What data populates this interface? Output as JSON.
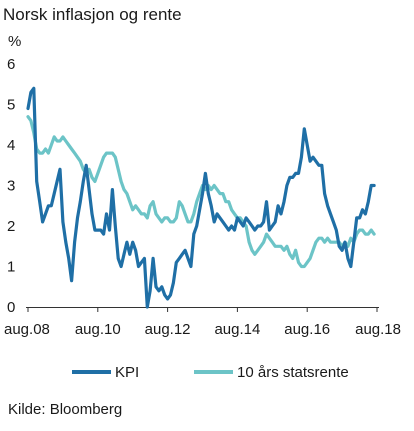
{
  "chart_data": {
    "type": "line",
    "title": "Norsk inflasjon og rente",
    "ylabel": "%",
    "xlabel": "",
    "source": "Kilde: Bloomberg",
    "ylim": [
      0,
      6
    ],
    "yticks": [
      0,
      1,
      2,
      3,
      4,
      5,
      6
    ],
    "xlim": [
      2008.583,
      2018.583
    ],
    "xticks": [
      {
        "x": 2008.583,
        "label": "aug.08"
      },
      {
        "x": 2010.583,
        "label": "aug.10"
      },
      {
        "x": 2012.583,
        "label": "aug.12"
      },
      {
        "x": 2014.583,
        "label": "aug.14"
      },
      {
        "x": 2016.583,
        "label": "aug.16"
      },
      {
        "x": 2018.583,
        "label": "aug.18"
      }
    ],
    "grid": false,
    "legend_position": "bottom",
    "series": [
      {
        "name": "KPI",
        "color": "#1f6fa6",
        "points": [
          [
            2008.583,
            4.9
          ],
          [
            2008.667,
            5.3
          ],
          [
            2008.75,
            5.4
          ],
          [
            2008.833,
            3.1
          ],
          [
            2008.917,
            2.6
          ],
          [
            2009.0,
            2.1
          ],
          [
            2009.083,
            2.3
          ],
          [
            2009.167,
            2.5
          ],
          [
            2009.25,
            2.5
          ],
          [
            2009.333,
            2.8
          ],
          [
            2009.417,
            3.1
          ],
          [
            2009.5,
            3.4
          ],
          [
            2009.583,
            2.1
          ],
          [
            2009.667,
            1.6
          ],
          [
            2009.75,
            1.2
          ],
          [
            2009.833,
            0.65
          ],
          [
            2009.917,
            1.6
          ],
          [
            2010.0,
            2.2
          ],
          [
            2010.083,
            2.6
          ],
          [
            2010.167,
            3.1
          ],
          [
            2010.25,
            3.5
          ],
          [
            2010.333,
            2.9
          ],
          [
            2010.417,
            2.3
          ],
          [
            2010.5,
            1.9
          ],
          [
            2010.583,
            1.9
          ],
          [
            2010.667,
            1.9
          ],
          [
            2010.75,
            1.8
          ],
          [
            2010.833,
            2.3
          ],
          [
            2010.917,
            1.9
          ],
          [
            2011.0,
            2.9
          ],
          [
            2011.083,
            2.0
          ],
          [
            2011.167,
            1.2
          ],
          [
            2011.25,
            1.0
          ],
          [
            2011.333,
            1.3
          ],
          [
            2011.417,
            1.6
          ],
          [
            2011.5,
            1.3
          ],
          [
            2011.583,
            1.6
          ],
          [
            2011.667,
            1.4
          ],
          [
            2011.75,
            1.0
          ],
          [
            2011.833,
            1.1
          ],
          [
            2011.917,
            1.2
          ],
          [
            2012.0,
            0.0
          ],
          [
            2012.083,
            0.4
          ],
          [
            2012.167,
            1.2
          ],
          [
            2012.25,
            0.5
          ],
          [
            2012.333,
            0.4
          ],
          [
            2012.417,
            0.5
          ],
          [
            2012.5,
            0.3
          ],
          [
            2012.583,
            0.2
          ],
          [
            2012.667,
            0.3
          ],
          [
            2012.75,
            0.6
          ],
          [
            2012.833,
            1.1
          ],
          [
            2012.917,
            1.2
          ],
          [
            2013.0,
            1.3
          ],
          [
            2013.083,
            1.4
          ],
          [
            2013.167,
            1.2
          ],
          [
            2013.25,
            1.0
          ],
          [
            2013.333,
            1.8
          ],
          [
            2013.417,
            2.0
          ],
          [
            2013.5,
            2.4
          ],
          [
            2013.583,
            2.8
          ],
          [
            2013.667,
            3.3
          ],
          [
            2013.75,
            2.8
          ],
          [
            2013.833,
            2.5
          ],
          [
            2013.917,
            2.1
          ],
          [
            2014.0,
            2.3
          ],
          [
            2014.083,
            2.2
          ],
          [
            2014.167,
            2.1
          ],
          [
            2014.25,
            2.0
          ],
          [
            2014.333,
            1.9
          ],
          [
            2014.417,
            2.0
          ],
          [
            2014.5,
            1.9
          ],
          [
            2014.583,
            2.2
          ],
          [
            2014.667,
            2.1
          ],
          [
            2014.75,
            2.0
          ],
          [
            2014.833,
            2.2
          ],
          [
            2014.917,
            2.1
          ],
          [
            2015.0,
            2.0
          ],
          [
            2015.083,
            1.9
          ],
          [
            2015.167,
            2.0
          ],
          [
            2015.25,
            2.0
          ],
          [
            2015.333,
            2.1
          ],
          [
            2015.417,
            2.6
          ],
          [
            2015.5,
            1.9
          ],
          [
            2015.583,
            2.0
          ],
          [
            2015.667,
            2.1
          ],
          [
            2015.75,
            2.5
          ],
          [
            2015.833,
            2.3
          ],
          [
            2015.917,
            2.6
          ],
          [
            2016.0,
            3.0
          ],
          [
            2016.083,
            3.2
          ],
          [
            2016.167,
            3.2
          ],
          [
            2016.25,
            3.3
          ],
          [
            2016.333,
            3.3
          ],
          [
            2016.417,
            3.7
          ],
          [
            2016.5,
            4.4
          ],
          [
            2016.583,
            4.0
          ],
          [
            2016.667,
            3.6
          ],
          [
            2016.75,
            3.7
          ],
          [
            2016.833,
            3.6
          ],
          [
            2016.917,
            3.5
          ],
          [
            2017.0,
            3.5
          ],
          [
            2017.083,
            2.8
          ],
          [
            2017.167,
            2.5
          ],
          [
            2017.25,
            2.3
          ],
          [
            2017.333,
            2.1
          ],
          [
            2017.417,
            1.9
          ],
          [
            2017.5,
            1.5
          ],
          [
            2017.583,
            1.4
          ],
          [
            2017.667,
            1.6
          ],
          [
            2017.75,
            1.2
          ],
          [
            2017.833,
            1.0
          ],
          [
            2017.917,
            1.6
          ],
          [
            2018.0,
            2.2
          ],
          [
            2018.083,
            2.2
          ],
          [
            2018.167,
            2.4
          ],
          [
            2018.25,
            2.3
          ],
          [
            2018.333,
            2.6
          ],
          [
            2018.417,
            3.0
          ],
          [
            2018.5,
            3.0
          ]
        ]
      },
      {
        "name": "10 års statsrente",
        "color": "#6cc4c7",
        "points": [
          [
            2008.583,
            4.7
          ],
          [
            2008.667,
            4.6
          ],
          [
            2008.75,
            4.3
          ],
          [
            2008.833,
            3.9
          ],
          [
            2008.917,
            3.8
          ],
          [
            2009.0,
            3.8
          ],
          [
            2009.083,
            3.9
          ],
          [
            2009.167,
            3.8
          ],
          [
            2009.25,
            4.0
          ],
          [
            2009.333,
            4.2
          ],
          [
            2009.417,
            4.1
          ],
          [
            2009.5,
            4.1
          ],
          [
            2009.583,
            4.2
          ],
          [
            2009.667,
            4.1
          ],
          [
            2009.75,
            4.0
          ],
          [
            2009.833,
            3.9
          ],
          [
            2009.917,
            3.8
          ],
          [
            2010.0,
            3.7
          ],
          [
            2010.083,
            3.6
          ],
          [
            2010.167,
            3.4
          ],
          [
            2010.25,
            3.3
          ],
          [
            2010.333,
            3.4
          ],
          [
            2010.417,
            3.2
          ],
          [
            2010.5,
            3.1
          ],
          [
            2010.583,
            3.3
          ],
          [
            2010.667,
            3.5
          ],
          [
            2010.75,
            3.7
          ],
          [
            2010.833,
            3.8
          ],
          [
            2010.917,
            3.8
          ],
          [
            2011.0,
            3.8
          ],
          [
            2011.083,
            3.7
          ],
          [
            2011.167,
            3.4
          ],
          [
            2011.25,
            3.1
          ],
          [
            2011.333,
            2.9
          ],
          [
            2011.417,
            2.8
          ],
          [
            2011.5,
            2.6
          ],
          [
            2011.583,
            2.4
          ],
          [
            2011.667,
            2.5
          ],
          [
            2011.75,
            2.4
          ],
          [
            2011.833,
            2.3
          ],
          [
            2011.917,
            2.3
          ],
          [
            2012.0,
            2.2
          ],
          [
            2012.083,
            2.5
          ],
          [
            2012.167,
            2.6
          ],
          [
            2012.25,
            2.3
          ],
          [
            2012.333,
            2.2
          ],
          [
            2012.417,
            2.1
          ],
          [
            2012.5,
            2.2
          ],
          [
            2012.583,
            2.2
          ],
          [
            2012.667,
            2.1
          ],
          [
            2012.75,
            2.1
          ],
          [
            2012.833,
            2.2
          ],
          [
            2012.917,
            2.6
          ],
          [
            2013.0,
            2.5
          ],
          [
            2013.083,
            2.3
          ],
          [
            2013.167,
            2.1
          ],
          [
            2013.25,
            2.1
          ],
          [
            2013.333,
            2.3
          ],
          [
            2013.417,
            2.6
          ],
          [
            2013.5,
            2.8
          ],
          [
            2013.583,
            3.0
          ],
          [
            2013.667,
            2.9
          ],
          [
            2013.75,
            3.0
          ],
          [
            2013.833,
            2.9
          ],
          [
            2013.917,
            3.0
          ],
          [
            2014.0,
            2.9
          ],
          [
            2014.083,
            2.8
          ],
          [
            2014.167,
            2.8
          ],
          [
            2014.25,
            2.6
          ],
          [
            2014.333,
            2.6
          ],
          [
            2014.417,
            2.4
          ],
          [
            2014.5,
            2.3
          ],
          [
            2014.583,
            2.2
          ],
          [
            2014.667,
            2.2
          ],
          [
            2014.75,
            2.1
          ],
          [
            2014.833,
            2.0
          ],
          [
            2014.917,
            1.6
          ],
          [
            2015.0,
            1.4
          ],
          [
            2015.083,
            1.3
          ],
          [
            2015.167,
            1.4
          ],
          [
            2015.25,
            1.5
          ],
          [
            2015.333,
            1.6
          ],
          [
            2015.417,
            1.8
          ],
          [
            2015.5,
            1.7
          ],
          [
            2015.583,
            1.6
          ],
          [
            2015.667,
            1.5
          ],
          [
            2015.75,
            1.5
          ],
          [
            2015.833,
            1.5
          ],
          [
            2015.917,
            1.4
          ],
          [
            2016.0,
            1.5
          ],
          [
            2016.083,
            1.3
          ],
          [
            2016.167,
            1.2
          ],
          [
            2016.25,
            1.4
          ],
          [
            2016.333,
            1.1
          ],
          [
            2016.417,
            1.0
          ],
          [
            2016.5,
            1.0
          ],
          [
            2016.583,
            1.1
          ],
          [
            2016.667,
            1.2
          ],
          [
            2016.75,
            1.4
          ],
          [
            2016.833,
            1.6
          ],
          [
            2016.917,
            1.7
          ],
          [
            2017.0,
            1.7
          ],
          [
            2017.083,
            1.6
          ],
          [
            2017.167,
            1.7
          ],
          [
            2017.25,
            1.6
          ],
          [
            2017.333,
            1.6
          ],
          [
            2017.417,
            1.6
          ],
          [
            2017.5,
            1.6
          ],
          [
            2017.583,
            1.5
          ],
          [
            2017.667,
            1.6
          ],
          [
            2017.75,
            1.5
          ],
          [
            2017.833,
            1.7
          ],
          [
            2017.917,
            1.6
          ],
          [
            2018.0,
            1.8
          ],
          [
            2018.083,
            1.9
          ],
          [
            2018.167,
            1.9
          ],
          [
            2018.25,
            1.8
          ],
          [
            2018.333,
            1.8
          ],
          [
            2018.417,
            1.9
          ],
          [
            2018.5,
            1.8
          ]
        ]
      }
    ]
  }
}
